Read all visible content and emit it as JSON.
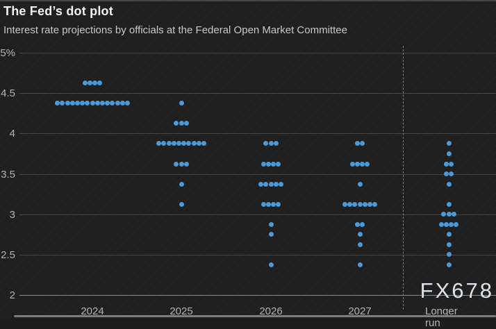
{
  "header": {
    "title": "The Fed’s dot plot",
    "subtitle": "Interest rate projections by officials at the Federal Open Market Committee"
  },
  "watermark": "FX678",
  "colors": {
    "background": "#1f1f20",
    "dot": "#4a99d8",
    "gridline": "#474747",
    "baseline": "#8c8c8c",
    "title_text": "#f2f2f2",
    "subtitle_text": "#c9c9c9",
    "tick_text": "#b3b3b3",
    "watermark_text": "#dde3ea"
  },
  "chart_data": {
    "type": "scatter",
    "title": "The Fed’s dot plot",
    "subtitle": "Interest rate projections by officials at the Federal Open Market Committee",
    "categories": [
      "2024",
      "2025",
      "2026",
      "2027",
      "Longer run"
    ],
    "xlabel": "",
    "ylabel": "",
    "ylim": [
      2,
      5
    ],
    "ytick_values": [
      5,
      4.5,
      4,
      3.5,
      3,
      2.5,
      2
    ],
    "ytick_labels": [
      "5%",
      "4.5",
      "4",
      "3.5",
      "3",
      "2.5",
      "2"
    ],
    "grid": "horizontal gridlines on, vertical off",
    "legend": "none",
    "separator_before_category": "Longer run",
    "dot_color": "#4a99d8",
    "series": [
      {
        "category": "2024",
        "points": [
          {
            "rate": 4.625,
            "count": 4
          },
          {
            "rate": 4.375,
            "count": 15
          }
        ]
      },
      {
        "category": "2025",
        "points": [
          {
            "rate": 4.375,
            "count": 1
          },
          {
            "rate": 4.125,
            "count": 3
          },
          {
            "rate": 3.875,
            "count": 10
          },
          {
            "rate": 3.625,
            "count": 3
          },
          {
            "rate": 3.375,
            "count": 1
          },
          {
            "rate": 3.125,
            "count": 1
          }
        ]
      },
      {
        "category": "2026",
        "points": [
          {
            "rate": 3.875,
            "count": 3
          },
          {
            "rate": 3.625,
            "count": 4
          },
          {
            "rate": 3.375,
            "count": 5
          },
          {
            "rate": 3.125,
            "count": 4
          },
          {
            "rate": 2.875,
            "count": 1
          },
          {
            "rate": 2.75,
            "count": 1
          },
          {
            "rate": 2.375,
            "count": 1
          }
        ]
      },
      {
        "category": "2027",
        "points": [
          {
            "rate": 3.875,
            "count": 2
          },
          {
            "rate": 3.625,
            "count": 4
          },
          {
            "rate": 3.375,
            "count": 1
          },
          {
            "rate": 3.125,
            "count": 7
          },
          {
            "rate": 2.875,
            "count": 2
          },
          {
            "rate": 2.75,
            "count": 1
          },
          {
            "rate": 2.625,
            "count": 1
          },
          {
            "rate": 2.375,
            "count": 1
          }
        ]
      },
      {
        "category": "Longer run",
        "points": [
          {
            "rate": 3.875,
            "count": 1
          },
          {
            "rate": 3.75,
            "count": 1
          },
          {
            "rate": 3.625,
            "count": 2
          },
          {
            "rate": 3.5,
            "count": 2
          },
          {
            "rate": 3.375,
            "count": 1
          },
          {
            "rate": 3.125,
            "count": 1
          },
          {
            "rate": 3.0,
            "count": 3
          },
          {
            "rate": 2.875,
            "count": 4
          },
          {
            "rate": 2.75,
            "count": 1
          },
          {
            "rate": 2.625,
            "count": 1
          },
          {
            "rate": 2.5,
            "count": 1
          },
          {
            "rate": 2.375,
            "count": 1
          }
        ]
      }
    ]
  }
}
